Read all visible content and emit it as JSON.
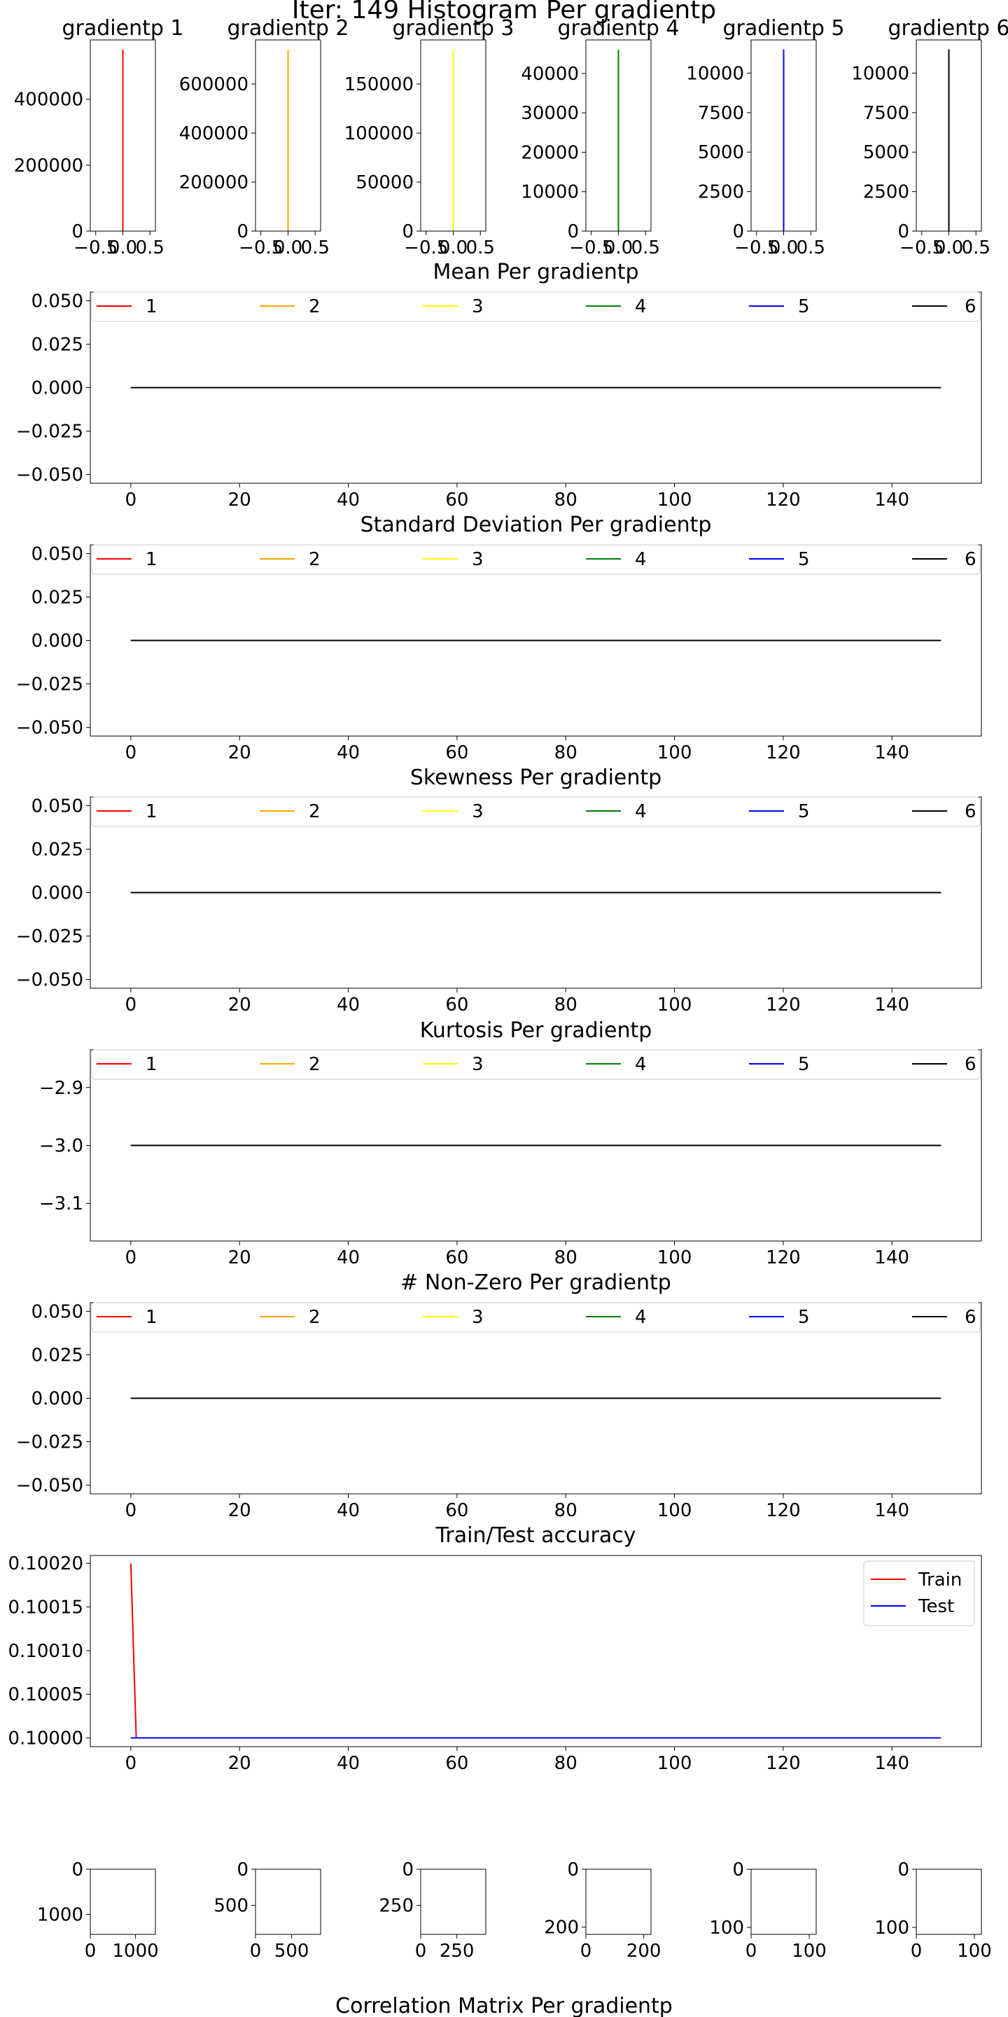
{
  "suptitle": "Iter: 149 Histogram Per gradientp",
  "bottom_title": "Correlation Matrix Per gradientp",
  "colors": {
    "series": [
      "#ff0000",
      "#ffa500",
      "#ffff00",
      "#008000",
      "#0000ff",
      "#000000"
    ],
    "train": "#ff0000",
    "test": "#0000ff",
    "axes": "#000000",
    "legend_frame": "#cccccc"
  },
  "chart_data": [
    {
      "type": "bar",
      "title": "gradientp 1",
      "color": "#ff0000",
      "x": [
        0.0
      ],
      "values": [
        550000
      ],
      "xlim": [
        -0.6,
        0.6
      ],
      "ylim": [
        0,
        580000
      ],
      "xticks": [
        -0.5,
        0.0,
        0.5
      ],
      "xtick_labels": [
        "−0.5",
        "0.0",
        "0.5"
      ],
      "yticks": [
        0,
        200000,
        400000
      ],
      "ytick_labels": [
        "0",
        "200000",
        "400000"
      ]
    },
    {
      "type": "bar",
      "title": "gradientp 2",
      "color": "#ffa500",
      "x": [
        0.0
      ],
      "values": [
        740000
      ],
      "xlim": [
        -0.6,
        0.6
      ],
      "ylim": [
        0,
        780000
      ],
      "xticks": [
        -0.5,
        0.0,
        0.5
      ],
      "xtick_labels": [
        "−0.5",
        "0.0",
        "0.5"
      ],
      "yticks": [
        0,
        200000,
        400000,
        600000
      ],
      "ytick_labels": [
        "0",
        "200000",
        "400000",
        "600000"
      ]
    },
    {
      "type": "bar",
      "title": "gradientp 3",
      "color": "#ffff00",
      "x": [
        0.0
      ],
      "values": [
        185000
      ],
      "xlim": [
        -0.6,
        0.6
      ],
      "ylim": [
        0,
        195000
      ],
      "xticks": [
        -0.5,
        0.0,
        0.5
      ],
      "xtick_labels": [
        "−0.5",
        "0.0",
        "0.5"
      ],
      "yticks": [
        0,
        50000,
        100000,
        150000
      ],
      "ytick_labels": [
        "0",
        "50000",
        "100000",
        "150000"
      ]
    },
    {
      "type": "bar",
      "title": "gradientp 4",
      "color": "#008000",
      "x": [
        0.0
      ],
      "values": [
        46000
      ],
      "xlim": [
        -0.6,
        0.6
      ],
      "ylim": [
        0,
        48500
      ],
      "xticks": [
        -0.5,
        0.0,
        0.5
      ],
      "xtick_labels": [
        "−0.5",
        "0.0",
        "0.5"
      ],
      "yticks": [
        0,
        10000,
        20000,
        30000,
        40000
      ],
      "ytick_labels": [
        "0",
        "10000",
        "20000",
        "30000",
        "40000"
      ]
    },
    {
      "type": "bar",
      "title": "gradientp 5",
      "color": "#0000ff",
      "x": [
        0.0
      ],
      "values": [
        11500
      ],
      "xlim": [
        -0.6,
        0.6
      ],
      "ylim": [
        0,
        12100
      ],
      "xticks": [
        -0.5,
        0.0,
        0.5
      ],
      "xtick_labels": [
        "−0.5",
        "0.0",
        "0.5"
      ],
      "yticks": [
        0,
        2500,
        5000,
        7500,
        10000
      ],
      "ytick_labels": [
        "0",
        "2500",
        "5000",
        "7500",
        "10000"
      ]
    },
    {
      "type": "bar",
      "title": "gradientp 6",
      "color": "#000000",
      "x": [
        0.0
      ],
      "values": [
        11500
      ],
      "xlim": [
        -0.6,
        0.6
      ],
      "ylim": [
        0,
        12100
      ],
      "xticks": [
        -0.5,
        0.0,
        0.5
      ],
      "xtick_labels": [
        "−0.5",
        "0.0",
        "0.5"
      ],
      "yticks": [
        0,
        2500,
        5000,
        7500,
        10000
      ],
      "ytick_labels": [
        "0",
        "2500",
        "5000",
        "7500",
        "10000"
      ]
    },
    {
      "type": "line",
      "title": "Mean Per gradientp",
      "x_range": [
        0,
        149
      ],
      "xlim": [
        -7.45,
        156.45
      ],
      "ylim": [
        -0.055,
        0.055
      ],
      "xticks": [
        0,
        20,
        40,
        60,
        80,
        100,
        120,
        140
      ],
      "xtick_labels": [
        "0",
        "20",
        "40",
        "60",
        "80",
        "100",
        "120",
        "140"
      ],
      "yticks": [
        0.05,
        0.025,
        0.0,
        -0.025,
        -0.05
      ],
      "ytick_labels": [
        "0.050",
        "0.025",
        "0.000",
        "−0.025",
        "−0.050"
      ],
      "legend": "top, 6 columns",
      "series": [
        {
          "name": "1",
          "constant": 0.0
        },
        {
          "name": "2",
          "constant": 0.0
        },
        {
          "name": "3",
          "constant": 0.0
        },
        {
          "name": "4",
          "constant": 0.0
        },
        {
          "name": "5",
          "constant": 0.0
        },
        {
          "name": "6",
          "constant": 0.0
        }
      ]
    },
    {
      "type": "line",
      "title": "Standard Deviation Per gradientp",
      "x_range": [
        0,
        149
      ],
      "xlim": [
        -7.45,
        156.45
      ],
      "ylim": [
        -0.055,
        0.055
      ],
      "xticks": [
        0,
        20,
        40,
        60,
        80,
        100,
        120,
        140
      ],
      "xtick_labels": [
        "0",
        "20",
        "40",
        "60",
        "80",
        "100",
        "120",
        "140"
      ],
      "yticks": [
        0.05,
        0.025,
        0.0,
        -0.025,
        -0.05
      ],
      "ytick_labels": [
        "0.050",
        "0.025",
        "0.000",
        "−0.025",
        "−0.050"
      ],
      "legend": "top, 6 columns",
      "series": [
        {
          "name": "1",
          "constant": 0.0
        },
        {
          "name": "2",
          "constant": 0.0
        },
        {
          "name": "3",
          "constant": 0.0
        },
        {
          "name": "4",
          "constant": 0.0
        },
        {
          "name": "5",
          "constant": 0.0
        },
        {
          "name": "6",
          "constant": 0.0
        }
      ]
    },
    {
      "type": "line",
      "title": "Skewness Per gradientp",
      "x_range": [
        0,
        149
      ],
      "xlim": [
        -7.45,
        156.45
      ],
      "ylim": [
        -0.055,
        0.055
      ],
      "xticks": [
        0,
        20,
        40,
        60,
        80,
        100,
        120,
        140
      ],
      "xtick_labels": [
        "0",
        "20",
        "40",
        "60",
        "80",
        "100",
        "120",
        "140"
      ],
      "yticks": [
        0.05,
        0.025,
        0.0,
        -0.025,
        -0.05
      ],
      "ytick_labels": [
        "0.050",
        "0.025",
        "0.000",
        "−0.025",
        "−0.050"
      ],
      "legend": "top, 6 columns",
      "series": [
        {
          "name": "1",
          "constant": 0.0
        },
        {
          "name": "2",
          "constant": 0.0
        },
        {
          "name": "3",
          "constant": 0.0
        },
        {
          "name": "4",
          "constant": 0.0
        },
        {
          "name": "5",
          "constant": 0.0
        },
        {
          "name": "6",
          "constant": 0.0
        }
      ]
    },
    {
      "type": "line",
      "title": "Kurtosis Per gradientp",
      "x_range": [
        0,
        149
      ],
      "xlim": [
        -7.45,
        156.45
      ],
      "ylim": [
        -3.165,
        2.835
      ],
      "ylim_note": "",
      "ylim_actual": [
        -3.165,
        -2.835
      ],
      "xticks": [
        0,
        20,
        40,
        60,
        80,
        100,
        120,
        140
      ],
      "xtick_labels": [
        "0",
        "20",
        "40",
        "60",
        "80",
        "100",
        "120",
        "140"
      ],
      "yticks": [
        -2.9,
        -3.0,
        -3.1
      ],
      "ytick_labels": [
        "−2.9",
        "−3.0",
        "−3.1"
      ],
      "legend": "top, 6 columns",
      "series": [
        {
          "name": "1",
          "constant": -3.0
        },
        {
          "name": "2",
          "constant": -3.0
        },
        {
          "name": "3",
          "constant": -3.0
        },
        {
          "name": "4",
          "constant": -3.0
        },
        {
          "name": "5",
          "constant": -3.0
        },
        {
          "name": "6",
          "constant": -3.0
        }
      ]
    },
    {
      "type": "line",
      "title": "# Non-Zero Per gradientp",
      "x_range": [
        0,
        149
      ],
      "xlim": [
        -7.45,
        156.45
      ],
      "ylim": [
        -0.055,
        0.055
      ],
      "xticks": [
        0,
        20,
        40,
        60,
        80,
        100,
        120,
        140
      ],
      "xtick_labels": [
        "0",
        "20",
        "40",
        "60",
        "80",
        "100",
        "120",
        "140"
      ],
      "yticks": [
        0.05,
        0.025,
        0.0,
        -0.025,
        -0.05
      ],
      "ytick_labels": [
        "0.050",
        "0.025",
        "0.000",
        "−0.025",
        "−0.050"
      ],
      "legend": "top, 6 columns",
      "series": [
        {
          "name": "1",
          "constant": 0.0
        },
        {
          "name": "2",
          "constant": 0.0
        },
        {
          "name": "3",
          "constant": 0.0
        },
        {
          "name": "4",
          "constant": 0.0
        },
        {
          "name": "5",
          "constant": 0.0
        },
        {
          "name": "6",
          "constant": 0.0
        }
      ]
    },
    {
      "type": "line",
      "title": "Train/Test accuracy",
      "xlim": [
        -7.45,
        156.45
      ],
      "ylim": [
        0.09999,
        0.100209
      ],
      "xticks": [
        0,
        20,
        40,
        60,
        80,
        100,
        120,
        140
      ],
      "xtick_labels": [
        "0",
        "20",
        "40",
        "60",
        "80",
        "100",
        "120",
        "140"
      ],
      "yticks": [
        0.1002,
        0.10015,
        0.1001,
        0.10005,
        0.1
      ],
      "ytick_labels": [
        "0.10020",
        "0.10015",
        "0.10010",
        "0.10005",
        "0.10000"
      ],
      "legend": "top-right",
      "series": [
        {
          "name": "Train",
          "points": [
            [
              0,
              0.1002
            ],
            [
              1,
              0.1
            ],
            [
              149,
              0.1
            ]
          ]
        },
        {
          "name": "Test",
          "points": [
            [
              0,
              0.1
            ],
            [
              149,
              0.1
            ]
          ]
        }
      ]
    },
    {
      "type": "heatmap",
      "title": "",
      "size": 1440,
      "xticks": [
        0,
        1000
      ],
      "xtick_labels": [
        "0",
        "1000"
      ],
      "yticks": [
        0,
        1000
      ],
      "ytick_labels": [
        "0",
        "1000"
      ]
    },
    {
      "type": "heatmap",
      "title": "",
      "size": 900,
      "xticks": [
        0,
        500
      ],
      "xtick_labels": [
        "0",
        "500"
      ],
      "yticks": [
        0,
        500
      ],
      "ytick_labels": [
        "0",
        "500"
      ]
    },
    {
      "type": "heatmap",
      "title": "",
      "size": 450,
      "xticks": [
        0,
        250
      ],
      "xtick_labels": [
        "0",
        "250"
      ],
      "yticks": [
        0,
        250
      ],
      "ytick_labels": [
        "0",
        "250"
      ]
    },
    {
      "type": "heatmap",
      "title": "",
      "size": 225,
      "xticks": [
        0,
        200
      ],
      "xtick_labels": [
        "0",
        "200"
      ],
      "yticks": [
        0,
        200
      ],
      "ytick_labels": [
        "0",
        "200"
      ]
    },
    {
      "type": "heatmap",
      "title": "",
      "size": 112,
      "xticks": [
        0,
        100
      ],
      "xtick_labels": [
        "0",
        "100"
      ],
      "yticks": [
        0,
        100
      ],
      "ytick_labels": [
        "0",
        "100"
      ]
    },
    {
      "type": "heatmap",
      "title": "",
      "size": 112,
      "xticks": [
        0,
        100
      ],
      "xtick_labels": [
        "0",
        "100"
      ],
      "yticks": [
        0,
        100
      ],
      "ytick_labels": [
        "0",
        "100"
      ]
    }
  ]
}
